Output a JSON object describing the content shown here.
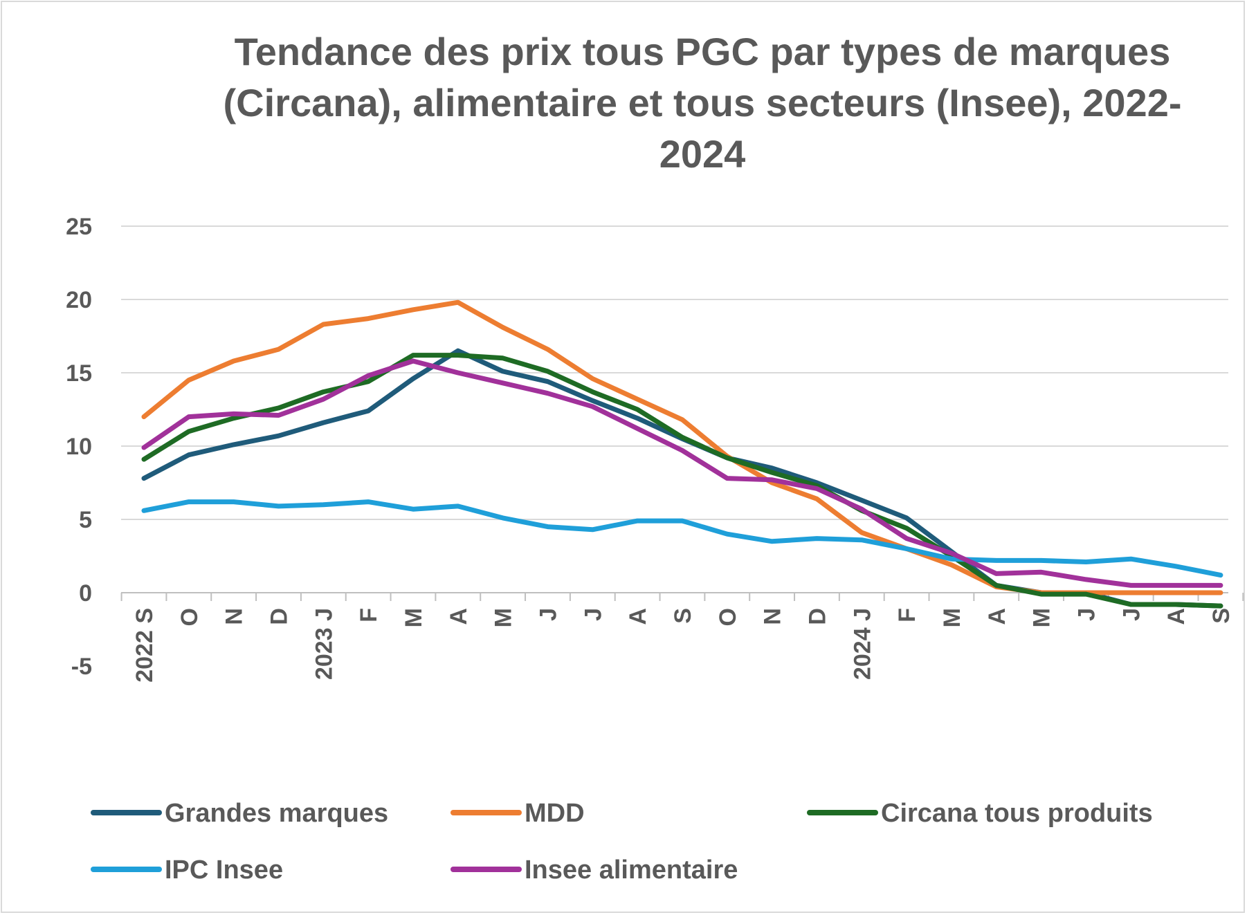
{
  "chart_data": {
    "type": "line",
    "title": "Tendance des prix tous PGC par types de marques (Circana), alimentaire et tous secteurs (Insee), 2022-2024",
    "xlabel": "",
    "ylabel": "",
    "ylim": [
      -5,
      25
    ],
    "yticks": [
      -5,
      0,
      5,
      10,
      15,
      20,
      25
    ],
    "grid": true,
    "legend_position": "bottom",
    "categories": [
      "2022 S",
      "O",
      "N",
      "D",
      "2023 J",
      "F",
      "M",
      "A",
      "M",
      "J",
      "J",
      "A",
      "S",
      "O",
      "N",
      "D",
      "2024 J",
      "F",
      "M",
      "A",
      "M",
      "J",
      "J",
      "A",
      "S"
    ],
    "series": [
      {
        "name": "Grandes marques",
        "color": "#1f5b7a",
        "values": [
          7.8,
          9.4,
          10.1,
          10.7,
          11.6,
          12.4,
          14.6,
          16.5,
          15.1,
          14.4,
          13.1,
          11.9,
          10.5,
          9.2,
          8.5,
          7.5,
          6.3,
          5.1,
          2.8,
          0.5,
          0.0,
          0.0,
          -0.8,
          -0.8,
          -0.9
        ]
      },
      {
        "name": "MDD",
        "color": "#ed7d31",
        "values": [
          12.0,
          14.5,
          15.8,
          16.6,
          18.3,
          18.7,
          19.3,
          19.8,
          18.1,
          16.6,
          14.6,
          13.2,
          11.8,
          9.3,
          7.5,
          6.4,
          4.1,
          3.0,
          1.9,
          0.4,
          0.0,
          0.0,
          0.0,
          0.0,
          0.0
        ]
      },
      {
        "name": "Circana tous produits",
        "color": "#1e6b24",
        "values": [
          9.1,
          11.0,
          11.9,
          12.6,
          13.7,
          14.4,
          16.2,
          16.2,
          16.0,
          15.1,
          13.7,
          12.5,
          10.6,
          9.2,
          8.2,
          7.3,
          5.6,
          4.4,
          2.5,
          0.5,
          -0.1,
          -0.1,
          -0.8,
          -0.8,
          -0.9
        ]
      },
      {
        "name": "IPC Insee",
        "color": "#1f9fd9",
        "values": [
          5.6,
          6.2,
          6.2,
          5.9,
          6.0,
          6.2,
          5.7,
          5.9,
          5.1,
          4.5,
          4.3,
          4.9,
          4.9,
          4.0,
          3.5,
          3.7,
          3.6,
          3.0,
          2.3,
          2.2,
          2.2,
          2.1,
          2.3,
          1.8,
          1.2
        ]
      },
      {
        "name": "Insee alimentaire",
        "color": "#a1319a",
        "values": [
          9.9,
          12.0,
          12.2,
          12.1,
          13.2,
          14.8,
          15.8,
          15.0,
          14.3,
          13.6,
          12.7,
          11.2,
          9.7,
          7.8,
          7.7,
          7.1,
          5.7,
          3.7,
          2.7,
          1.3,
          1.4,
          0.9,
          0.5,
          0.5,
          0.5
        ]
      }
    ]
  }
}
